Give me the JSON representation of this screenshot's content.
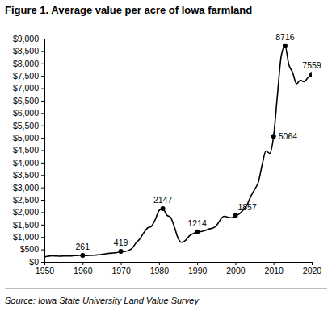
{
  "chart_data": {
    "type": "line",
    "title": "Figure 1. Average value per acre of Iowa farmland",
    "source": "Source: Iowa State University Land Value Survey",
    "xlim": [
      1950,
      2020
    ],
    "xticks": [
      1950,
      1960,
      1970,
      1980,
      1990,
      2000,
      2010,
      2020
    ],
    "ylim": [
      0,
      9000
    ],
    "yticks": [
      {
        "value": 0,
        "label": "$0"
      },
      {
        "value": 500,
        "label": "$500"
      },
      {
        "value": 1000,
        "label": "$1,000"
      },
      {
        "value": 1500,
        "label": "$1,500"
      },
      {
        "value": 2000,
        "label": "$2,000"
      },
      {
        "value": 2500,
        "label": "$2,500"
      },
      {
        "value": 3000,
        "label": "$3,000"
      },
      {
        "value": 3500,
        "label": "$3,500"
      },
      {
        "value": 4000,
        "label": "$4,000"
      },
      {
        "value": 4500,
        "label": "$4,500"
      },
      {
        "value": 5000,
        "label": "$5,000"
      },
      {
        "value": 5500,
        "label": "$5,500"
      },
      {
        "value": 6000,
        "label": "$6,000"
      },
      {
        "value": 6500,
        "label": "$6,500"
      },
      {
        "value": 7000,
        "label": "$7,000"
      },
      {
        "value": 7500,
        "label": "$7,500"
      },
      {
        "value": 8000,
        "label": "$8,000"
      },
      {
        "value": 8500,
        "label": "$8,500"
      },
      {
        "value": 9000,
        "label": "$9,000"
      }
    ],
    "grid": false,
    "series": [
      {
        "type": "line",
        "color": "#000000",
        "x": [
          1950,
          1951,
          1952,
          1953,
          1954,
          1955,
          1956,
          1957,
          1958,
          1959,
          1960,
          1961,
          1962,
          1963,
          1964,
          1965,
          1966,
          1967,
          1968,
          1969,
          1970,
          1971,
          1972,
          1973,
          1974,
          1975,
          1976,
          1977,
          1978,
          1979,
          1980,
          1981,
          1982,
          1983,
          1984,
          1985,
          1986,
          1987,
          1988,
          1989,
          1990,
          1991,
          1992,
          1993,
          1994,
          1995,
          1996,
          1997,
          1998,
          1999,
          2000,
          2001,
          2002,
          2003,
          2004,
          2005,
          2006,
          2007,
          2008,
          2009,
          2010,
          2011,
          2012,
          2013,
          2014,
          2015,
          2016,
          2017,
          2018,
          2019,
          2020
        ],
        "values": [
          196,
          228,
          247,
          236,
          229,
          235,
          234,
          239,
          250,
          265,
          261,
          257,
          263,
          270,
          283,
          298,
          323,
          344,
          358,
          371,
          419,
          414,
          459,
          553,
          772,
          925,
          1172,
          1366,
          1436,
          1693,
          2066,
          2147,
          1889,
          1801,
          1418,
          948,
          787,
          875,
          1054,
          1139,
          1214,
          1219,
          1256,
          1323,
          1356,
          1455,
          1682,
          1837,
          1801,
          1781,
          1857,
          1926,
          2083,
          2275,
          2629,
          2914,
          3204,
          3908,
          4468,
          4371,
          5064,
          6708,
          8296,
          8716,
          7943,
          7633,
          7183,
          7326,
          7264,
          7432,
          7559
        ]
      },
      {
        "type": "scatter",
        "marker": "circle",
        "color": "#000000",
        "data_labels": true,
        "x": [
          1960,
          1970,
          1981,
          1990,
          2000,
          2010,
          2013,
          2020
        ],
        "values": [
          261,
          419,
          2147,
          1214,
          1857,
          5064,
          8716,
          7559
        ]
      }
    ]
  }
}
